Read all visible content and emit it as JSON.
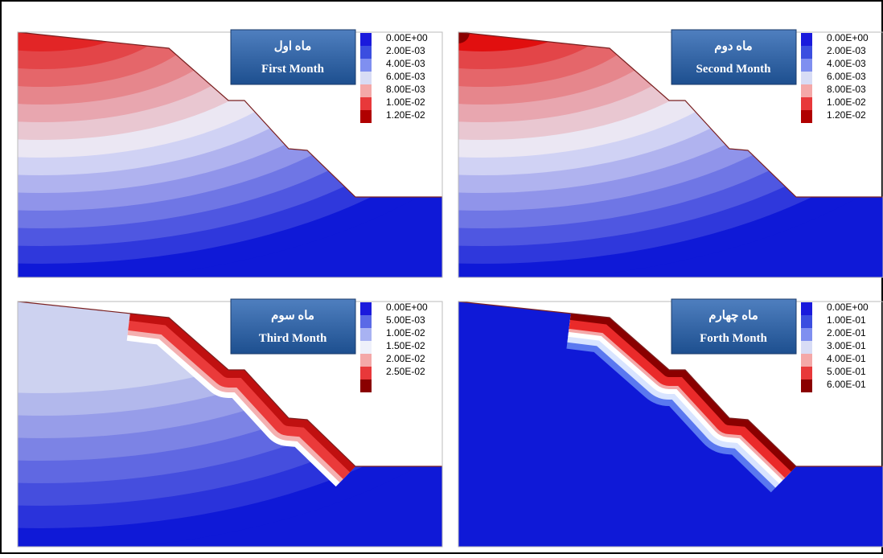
{
  "panels": [
    {
      "title_fa": "ماه اول",
      "title_en": "First Month",
      "legend": {
        "labels": [
          "0.00E+00",
          "2.00E-03",
          "4.00E-03",
          "6.00E-03",
          "8.00E-03",
          "1.00E-02",
          "1.20E-02"
        ],
        "colors": [
          "#1a1adc",
          "#3b4ee0",
          "#7f8ff0",
          "#d8dcf5",
          "#f4a8a8",
          "#e8383a",
          "#b00000"
        ]
      }
    },
    {
      "title_fa": "ماه دوم",
      "title_en": "Second Month",
      "legend": {
        "labels": [
          "0.00E+00",
          "2.00E-03",
          "4.00E-03",
          "6.00E-03",
          "8.00E-03",
          "1.00E-02",
          "1.20E-02"
        ],
        "colors": [
          "#1a1adc",
          "#3b4ee0",
          "#7f8ff0",
          "#d8dcf5",
          "#f4a8a8",
          "#e8383a",
          "#b00000"
        ]
      }
    },
    {
      "title_fa": "ماه سوم",
      "title_en": "Third Month",
      "legend": {
        "labels": [
          "0.00E+00",
          "5.00E-03",
          "1.00E-02",
          "1.50E-02",
          "2.00E-02",
          "2.50E-02"
        ],
        "colors": [
          "#1a1adc",
          "#5a6ae6",
          "#a8b2f2",
          "#eef0fa",
          "#f4a8a8",
          "#e8383a",
          "#8a0000"
        ]
      }
    },
    {
      "title_fa": "ماه چهارم",
      "title_en": "Forth Month",
      "legend": {
        "labels": [
          "0.00E+00",
          "1.00E-01",
          "2.00E-01",
          "3.00E-01",
          "4.00E-01",
          "5.00E-01",
          "6.00E-01"
        ],
        "colors": [
          "#1a1adc",
          "#3b4ee0",
          "#7f8ff0",
          "#d8dcf5",
          "#f4a8a8",
          "#e8383a",
          "#8a0000"
        ]
      }
    }
  ]
}
